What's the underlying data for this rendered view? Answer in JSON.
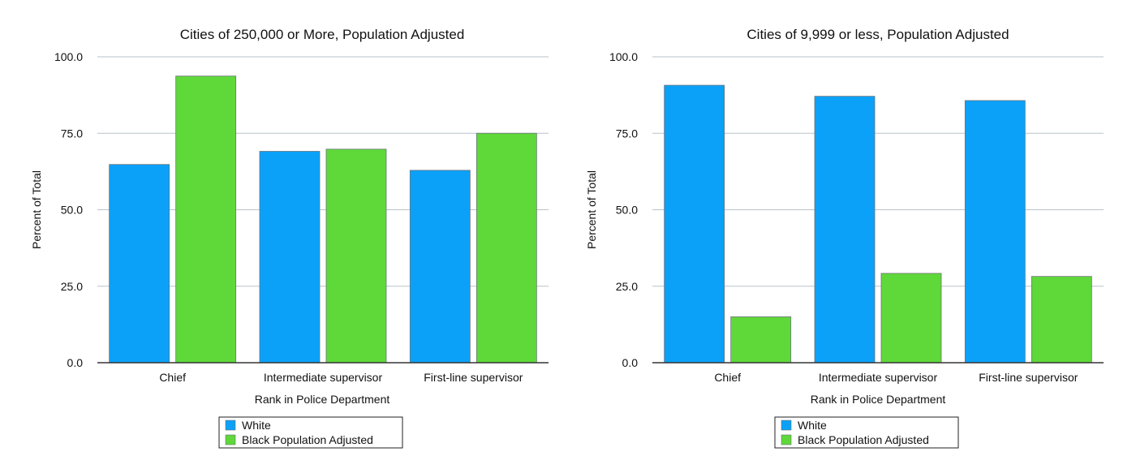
{
  "chart_data": [
    {
      "type": "bar",
      "title": "Cities of 250,000 or More, Population Adjusted",
      "xlabel": "Rank in Police Department",
      "ylabel": "Percent of Total",
      "ylim": [
        0,
        100
      ],
      "yticks": [
        "0.0",
        "25.0",
        "50.0",
        "75.0",
        "100.0"
      ],
      "grid": true,
      "legend_position": "bottom",
      "categories": [
        "Chief",
        "Intermediate supervisor",
        "First-line supervisor"
      ],
      "series": [
        {
          "name": "White",
          "color": "#0ba1f9",
          "values": [
            64.8,
            69.1,
            62.9
          ]
        },
        {
          "name": "Black Population Adjusted",
          "color": "#5fd83a",
          "values": [
            93.7,
            69.8,
            75.0
          ]
        }
      ]
    },
    {
      "type": "bar",
      "title": "Cities of 9,999 or less, Population Adjusted",
      "xlabel": "Rank in Police Department",
      "ylabel": "Percent of Total",
      "ylim": [
        0,
        100
      ],
      "yticks": [
        "0.0",
        "25.0",
        "50.0",
        "75.0",
        "100.0"
      ],
      "grid": true,
      "legend_position": "bottom",
      "categories": [
        "Chief",
        "Intermediate supervisor",
        "First-line supervisor"
      ],
      "series": [
        {
          "name": "White",
          "color": "#0ba1f9",
          "values": [
            90.7,
            87.1,
            85.7
          ]
        },
        {
          "name": "Black Population Adjusted",
          "color": "#5fd83a",
          "values": [
            15.0,
            29.2,
            28.2
          ]
        }
      ]
    }
  ]
}
